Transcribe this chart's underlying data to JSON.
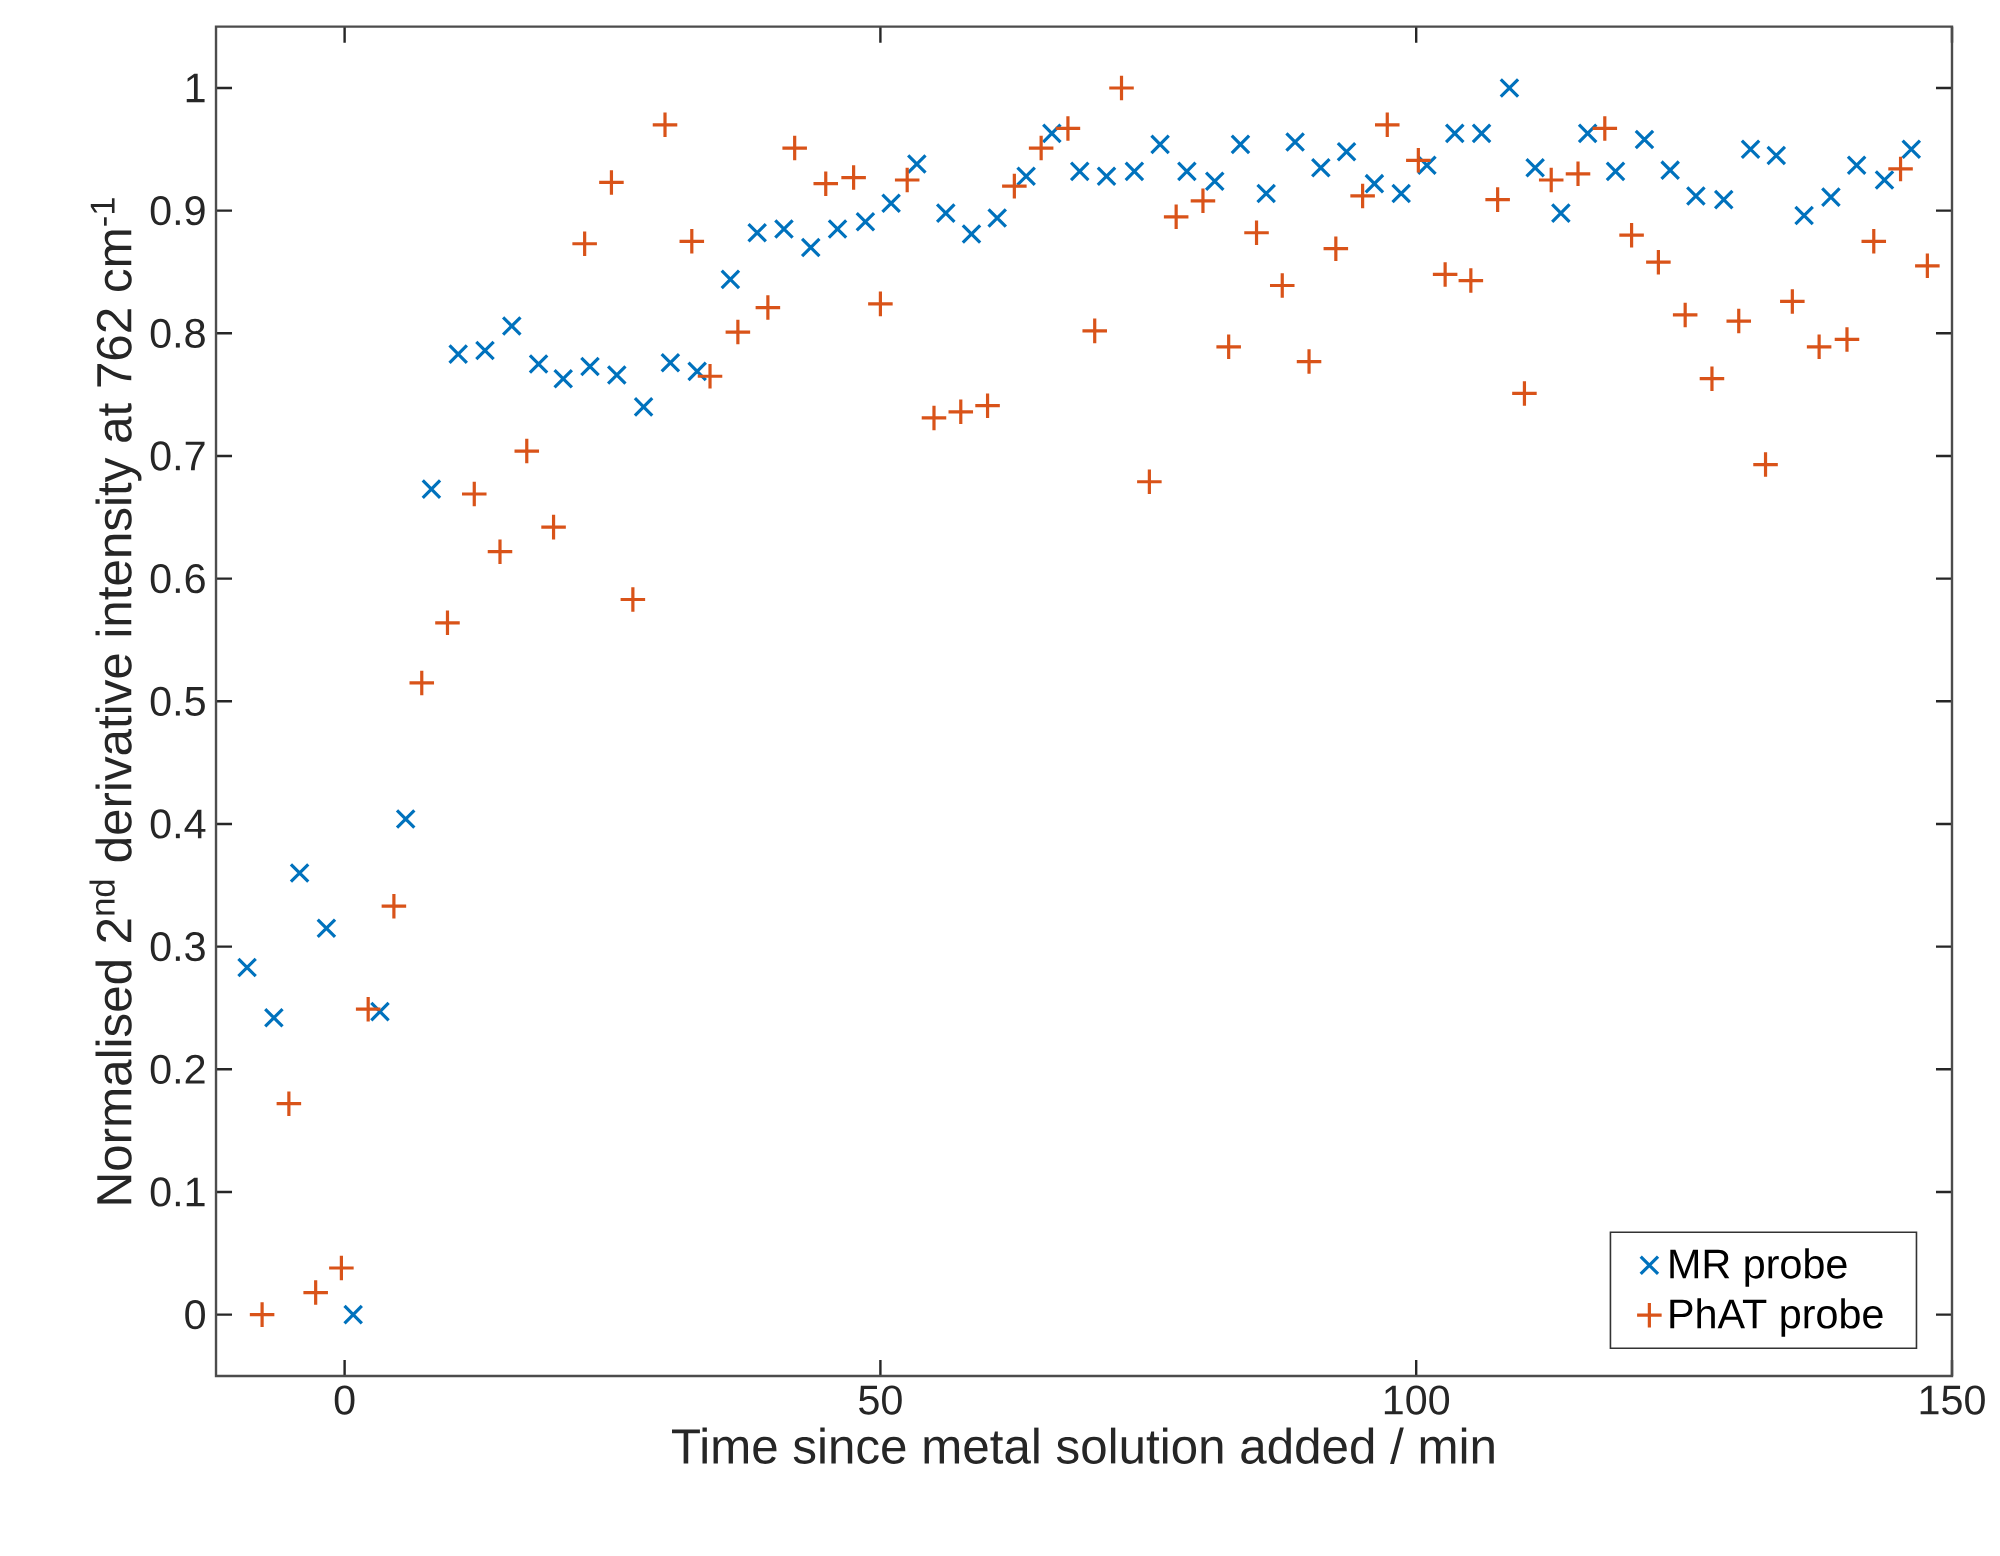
{
  "chart_data": {
    "type": "scatter",
    "xlabel": "Time since metal solution added / min",
    "ylabel": "Normalised 2$^{nd}$ derivative intensity at 762 cm$^{-1}$",
    "xlim": [
      -12,
      150
    ],
    "ylim": [
      -0.05,
      1.05
    ],
    "xticks": [
      0,
      50,
      100,
      150
    ],
    "yticks": [
      0,
      0.1,
      0.2,
      0.3,
      0.4,
      0.5,
      0.6,
      0.7,
      0.8,
      0.9,
      1
    ],
    "legend": "bottom right",
    "grid": false,
    "series": [
      {
        "name": "MR probe",
        "color": "#0072bd",
        "marker": "x",
        "x": [
          -9.1,
          -6.6,
          -4.2,
          -1.7,
          0.8,
          3.3,
          5.7,
          8.1,
          10.6,
          13.1,
          15.6,
          18.1,
          20.4,
          22.9,
          25.4,
          27.9,
          30.4,
          32.9,
          36.0,
          38.5,
          41.0,
          43.5,
          46.0,
          48.6,
          51.0,
          53.4,
          56.1,
          58.5,
          60.9,
          63.6,
          66.0,
          68.6,
          71.1,
          73.7,
          76.1,
          78.6,
          81.2,
          83.6,
          86.0,
          88.7,
          91.1,
          93.5,
          96.1,
          98.6,
          101.0,
          103.6,
          106.1,
          108.7,
          111.1,
          113.5,
          116.0,
          118.6,
          121.3,
          123.7,
          126.1,
          128.7,
          131.2,
          133.6,
          136.2,
          138.7,
          141.1,
          143.7,
          146.2
        ],
        "values": [
          0.283,
          0.242,
          0.36,
          0.315,
          0.0,
          0.247,
          0.404,
          0.673,
          0.783,
          0.786,
          0.806,
          0.775,
          0.763,
          0.773,
          0.766,
          0.74,
          0.776,
          0.769,
          0.844,
          0.882,
          0.885,
          0.87,
          0.885,
          0.891,
          0.906,
          0.938,
          0.898,
          0.881,
          0.894,
          0.928,
          0.963,
          0.932,
          0.928,
          0.932,
          0.954,
          0.932,
          0.924,
          0.954,
          0.914,
          0.956,
          0.935,
          0.948,
          0.922,
          0.914,
          0.937,
          0.963,
          0.963,
          1.0,
          0.935,
          0.898,
          0.963,
          0.932,
          0.958,
          0.933,
          0.912,
          0.909,
          0.95,
          0.945,
          0.896,
          0.911,
          0.937,
          0.925,
          0.95
        ]
      },
      {
        "name": "PhAT probe",
        "color": "#d95319",
        "marker": "cross",
        "x": [
          -7.7,
          -5.2,
          -2.7,
          -0.3,
          2.2,
          4.6,
          7.2,
          9.6,
          12.1,
          14.5,
          17.0,
          19.5,
          22.4,
          24.9,
          26.9,
          29.9,
          32.4,
          34.1,
          36.7,
          39.5,
          42.0,
          44.9,
          47.5,
          50.0,
          52.5,
          55.0,
          57.5,
          60.0,
          62.5,
          65.0,
          67.5,
          70.0,
          72.5,
          75.1,
          77.6,
          80.1,
          82.5,
          85.1,
          87.5,
          90.0,
          92.5,
          95.0,
          97.3,
          100.2,
          102.7,
          105.1,
          107.6,
          110.1,
          112.6,
          115.1,
          117.6,
          120.1,
          122.6,
          125.1,
          127.6,
          130.1,
          132.6,
          135.1,
          137.6,
          140.2,
          142.7,
          145.2,
          147.7
        ],
        "values": [
          0.0,
          0.172,
          0.018,
          0.038,
          0.249,
          0.333,
          0.515,
          0.564,
          0.669,
          0.622,
          0.704,
          0.642,
          0.873,
          0.923,
          0.583,
          0.97,
          0.875,
          0.765,
          0.801,
          0.821,
          0.951,
          0.922,
          0.927,
          0.824,
          0.925,
          0.731,
          0.736,
          0.741,
          0.92,
          0.951,
          0.967,
          0.802,
          1.0,
          0.679,
          0.895,
          0.908,
          0.789,
          0.882,
          0.839,
          0.777,
          0.869,
          0.912,
          0.97,
          0.941,
          0.848,
          0.843,
          0.909,
          0.751,
          0.925,
          0.93,
          0.967,
          0.88,
          0.858,
          0.815,
          0.763,
          0.81,
          0.693,
          0.826,
          0.789,
          0.795,
          0.875,
          0.934,
          0.855
        ]
      }
    ]
  }
}
